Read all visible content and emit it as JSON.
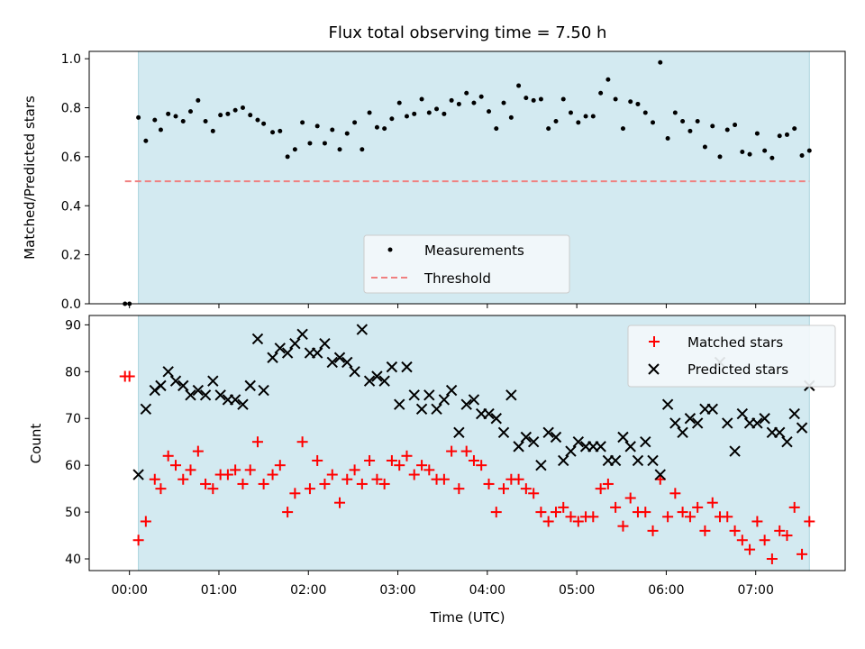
{
  "chart_data": [
    {
      "type": "scatter",
      "title": "Flux total observing time = 7.50 h",
      "xlabel": "",
      "ylabel": "Matched/Predicted stars",
      "xlim": [
        -0.45,
        8.0
      ],
      "ylim": [
        0.0,
        1.03
      ],
      "yticks": [
        0.0,
        0.2,
        0.4,
        0.6,
        0.8,
        1.0
      ],
      "ytick_labels": [
        "0.0",
        "0.2",
        "0.4",
        "0.6",
        "0.8",
        "1.0"
      ],
      "shaded_span": [
        0.1,
        7.6
      ],
      "shade_color": "#d3eaf1",
      "legend_position": "lower center",
      "legend": [
        "Measurements",
        "Threshold"
      ],
      "series": [
        {
          "name": "Measurements",
          "marker": "dot",
          "color": "#000000",
          "x": [
            -0.05,
            0.0,
            0.1,
            0.183,
            0.283,
            0.35,
            0.433,
            0.517,
            0.6,
            0.683,
            0.767,
            0.85,
            0.933,
            1.017,
            1.1,
            1.183,
            1.267,
            1.35,
            1.433,
            1.5,
            1.6,
            1.683,
            1.767,
            1.85,
            1.933,
            2.017,
            2.1,
            2.183,
            2.267,
            2.35,
            2.433,
            2.517,
            2.6,
            2.683,
            2.767,
            2.85,
            2.933,
            3.017,
            3.1,
            3.183,
            3.267,
            3.35,
            3.433,
            3.517,
            3.6,
            3.683,
            3.767,
            3.85,
            3.933,
            4.017,
            4.1,
            4.183,
            4.267,
            4.35,
            4.433,
            4.517,
            4.6,
            4.683,
            4.767,
            4.85,
            4.933,
            5.017,
            5.1,
            5.183,
            5.267,
            5.35,
            5.433,
            5.517,
            5.6,
            5.683,
            5.767,
            5.85,
            5.933,
            6.017,
            6.1,
            6.183,
            6.267,
            6.35,
            6.433,
            6.517,
            6.6,
            6.683,
            6.767,
            6.85,
            6.933,
            7.017,
            7.1,
            7.183,
            7.267,
            7.35,
            7.433,
            7.517,
            7.6
          ],
          "y": [
            0.0,
            0.0,
            0.76,
            0.665,
            0.75,
            0.71,
            0.775,
            0.765,
            0.745,
            0.785,
            0.83,
            0.745,
            0.705,
            0.77,
            0.775,
            0.79,
            0.8,
            0.77,
            0.75,
            0.735,
            0.7,
            0.705,
            0.6,
            0.63,
            0.74,
            0.655,
            0.725,
            0.655,
            0.71,
            0.63,
            0.695,
            0.74,
            0.63,
            0.78,
            0.72,
            0.715,
            0.755,
            0.82,
            0.765,
            0.775,
            0.835,
            0.78,
            0.795,
            0.775,
            0.83,
            0.815,
            0.86,
            0.82,
            0.845,
            0.785,
            0.715,
            0.82,
            0.76,
            0.89,
            0.84,
            0.83,
            0.835,
            0.715,
            0.745,
            0.835,
            0.78,
            0.74,
            0.765,
            0.765,
            0.86,
            0.915,
            0.835,
            0.715,
            0.825,
            0.815,
            0.78,
            0.74,
            0.985,
            0.675,
            0.78,
            0.745,
            0.705,
            0.745,
            0.64,
            0.725,
            0.6,
            0.71,
            0.73,
            0.62,
            0.61,
            0.695,
            0.625,
            0.595,
            0.685,
            0.69,
            0.715,
            0.605,
            0.625
          ]
        },
        {
          "name": "Threshold",
          "type": "line",
          "style": "dashed",
          "color": "#f08080",
          "x": [
            -0.05,
            7.6
          ],
          "y": [
            0.5,
            0.5
          ]
        }
      ]
    },
    {
      "type": "scatter",
      "title": "",
      "xlabel": "Time (UTC)",
      "ylabel": "Count",
      "xlim": [
        -0.45,
        8.0
      ],
      "ylim": [
        37.5,
        92.0
      ],
      "yticks": [
        40,
        50,
        60,
        70,
        80,
        90
      ],
      "ytick_labels": [
        "40",
        "50",
        "60",
        "70",
        "80",
        "90"
      ],
      "xticks": [
        0,
        1,
        2,
        3,
        4,
        5,
        6,
        7
      ],
      "xtick_labels": [
        "00:00",
        "01:00",
        "02:00",
        "03:00",
        "04:00",
        "05:00",
        "06:00",
        "07:00"
      ],
      "shaded_span": [
        0.1,
        7.6
      ],
      "shade_color": "#d3eaf1",
      "legend_position": "top-right",
      "legend": [
        "Matched stars",
        "Predicted stars"
      ],
      "series": [
        {
          "name": "Matched stars",
          "marker": "plus",
          "color": "#ff0000",
          "x": [
            -0.05,
            0.0,
            0.1,
            0.183,
            0.283,
            0.35,
            0.433,
            0.517,
            0.6,
            0.683,
            0.767,
            0.85,
            0.933,
            1.017,
            1.1,
            1.183,
            1.267,
            1.35,
            1.433,
            1.5,
            1.6,
            1.683,
            1.767,
            1.85,
            1.933,
            2.017,
            2.1,
            2.183,
            2.267,
            2.35,
            2.433,
            2.517,
            2.6,
            2.683,
            2.767,
            2.85,
            2.933,
            3.017,
            3.1,
            3.183,
            3.267,
            3.35,
            3.433,
            3.517,
            3.6,
            3.683,
            3.767,
            3.85,
            3.933,
            4.017,
            4.1,
            4.183,
            4.267,
            4.35,
            4.433,
            4.517,
            4.6,
            4.683,
            4.767,
            4.85,
            4.933,
            5.017,
            5.1,
            5.183,
            5.267,
            5.35,
            5.433,
            5.517,
            5.6,
            5.683,
            5.767,
            5.85,
            5.933,
            6.017,
            6.1,
            6.183,
            6.267,
            6.35,
            6.433,
            6.517,
            6.6,
            6.683,
            6.767,
            6.85,
            6.933,
            7.017,
            7.1,
            7.183,
            7.267,
            7.35,
            7.433,
            7.517,
            7.6
          ],
          "y": [
            79,
            79,
            44,
            48,
            57,
            55,
            62,
            60,
            57,
            59,
            63,
            56,
            55,
            58,
            58,
            59,
            56,
            59,
            65,
            56,
            58,
            60,
            50,
            54,
            65,
            55,
            61,
            56,
            58,
            52,
            57,
            59,
            56,
            61,
            57,
            56,
            61,
            60,
            62,
            58,
            60,
            59,
            57,
            57,
            63,
            55,
            63,
            61,
            60,
            56,
            50,
            55,
            57,
            57,
            55,
            54,
            50,
            48,
            50,
            51,
            49,
            48,
            49,
            49,
            55,
            56,
            51,
            47,
            53,
            50,
            50,
            46,
            57,
            49,
            54,
            50,
            49,
            51,
            46,
            52,
            49,
            49,
            46,
            44,
            42,
            48,
            44,
            40,
            46,
            45,
            51,
            41,
            48
          ]
        },
        {
          "name": "Predicted stars",
          "marker": "x",
          "color": "#000000",
          "x": [
            0.1,
            0.183,
            0.283,
            0.35,
            0.433,
            0.517,
            0.6,
            0.683,
            0.767,
            0.85,
            0.933,
            1.017,
            1.1,
            1.183,
            1.267,
            1.35,
            1.433,
            1.5,
            1.6,
            1.683,
            1.767,
            1.85,
            1.933,
            2.017,
            2.1,
            2.183,
            2.267,
            2.35,
            2.433,
            2.517,
            2.6,
            2.683,
            2.767,
            2.85,
            2.933,
            3.017,
            3.1,
            3.183,
            3.267,
            3.35,
            3.433,
            3.517,
            3.6,
            3.683,
            3.767,
            3.85,
            3.933,
            4.017,
            4.1,
            4.183,
            4.267,
            4.35,
            4.433,
            4.517,
            4.6,
            4.683,
            4.767,
            4.85,
            4.933,
            5.017,
            5.1,
            5.183,
            5.267,
            5.35,
            5.433,
            5.517,
            5.6,
            5.683,
            5.767,
            5.85,
            5.933,
            6.017,
            6.1,
            6.183,
            6.267,
            6.35,
            6.433,
            6.517,
            6.6,
            6.683,
            6.767,
            6.85,
            6.933,
            7.017,
            7.1,
            7.183,
            7.267,
            7.35,
            7.433,
            7.517,
            7.6
          ],
          "y": [
            58,
            72,
            76,
            77,
            80,
            78,
            77,
            75,
            76,
            75,
            78,
            75,
            74,
            74,
            73,
            77,
            87,
            76,
            83,
            85,
            84,
            86,
            88,
            84,
            84,
            86,
            82,
            83,
            82,
            80,
            89,
            78,
            79,
            78,
            81,
            73,
            81,
            75,
            72,
            75,
            72,
            74,
            76,
            67,
            73,
            74,
            71,
            71,
            70,
            67,
            75,
            64,
            66,
            65,
            60,
            67,
            66,
            61,
            63,
            65,
            64,
            64,
            64,
            61,
            61,
            66,
            64,
            61,
            65,
            61,
            58,
            73,
            69,
            67,
            70,
            69,
            72,
            72,
            82,
            69,
            63,
            71,
            69,
            69,
            70,
            67,
            67,
            65,
            71,
            68,
            77
          ]
        }
      ]
    }
  ]
}
